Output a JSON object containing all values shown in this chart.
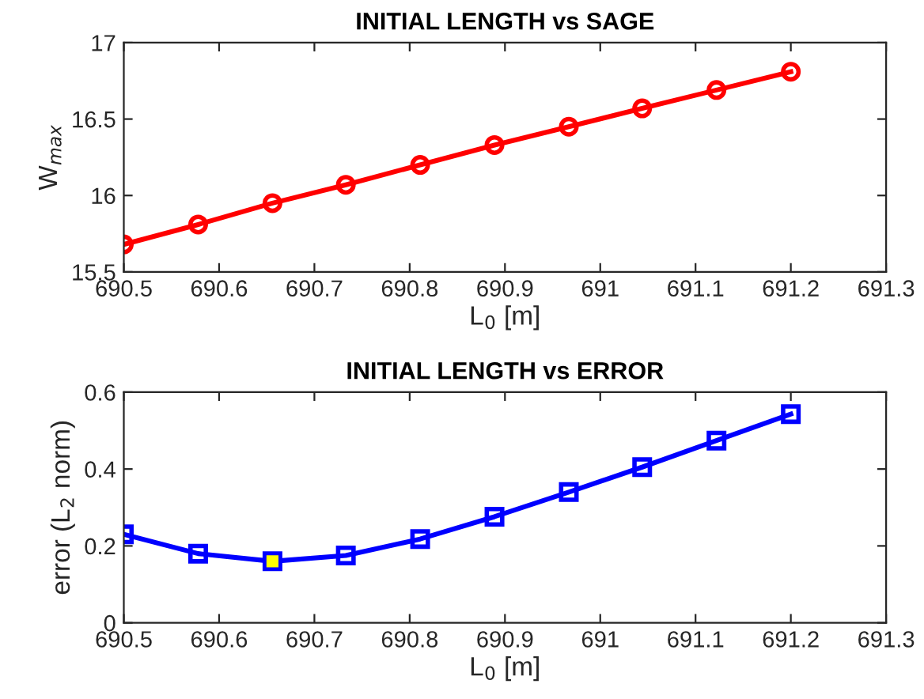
{
  "chart_data": [
    {
      "type": "line",
      "title": "INITIAL LENGTH vs SAGE",
      "xlabel": "L$_{0}$ [m]",
      "ylabel": "W$_{max}$",
      "xlim": [
        690.5,
        691.3
      ],
      "xticks": [
        690.5,
        690.6,
        690.7,
        690.8,
        690.9,
        691,
        691.1,
        691.2,
        691.3
      ],
      "ylim": [
        15.5,
        17
      ],
      "yticks": [
        15.5,
        16,
        16.5,
        17
      ],
      "grid": false,
      "series": [
        {
          "color": "#ff0000",
          "marker": "circle",
          "x": [
            690.5,
            690.578,
            690.656,
            690.733,
            690.811,
            690.889,
            690.967,
            691.044,
            691.122,
            691.2
          ],
          "values": [
            15.68,
            15.81,
            15.95,
            16.07,
            16.2,
            16.33,
            16.45,
            16.57,
            16.69,
            16.81
          ]
        }
      ]
    },
    {
      "type": "line",
      "title": "INITIAL LENGTH vs ERROR",
      "xlabel": "L$_{0}$ [m]",
      "ylabel": "error (L$_{2}$ norm)",
      "xlim": [
        690.5,
        691.3
      ],
      "xticks": [
        690.5,
        690.6,
        690.7,
        690.8,
        690.9,
        691,
        691.1,
        691.2,
        691.3
      ],
      "ylim": [
        0,
        0.6
      ],
      "yticks": [
        0,
        0.2,
        0.4,
        0.6
      ],
      "grid": false,
      "series": [
        {
          "color": "#0000ff",
          "marker": "square",
          "x": [
            690.5,
            690.578,
            690.656,
            690.733,
            690.811,
            690.889,
            690.967,
            691.044,
            691.122,
            691.2
          ],
          "values": [
            0.23,
            0.18,
            0.16,
            0.175,
            0.218,
            0.276,
            0.34,
            0.405,
            0.474,
            0.543
          ]
        },
        {
          "type": "scatter",
          "color": "#ffff00",
          "marker": "square",
          "x": [
            690.656
          ],
          "values": [
            0.16
          ]
        }
      ]
    }
  ]
}
